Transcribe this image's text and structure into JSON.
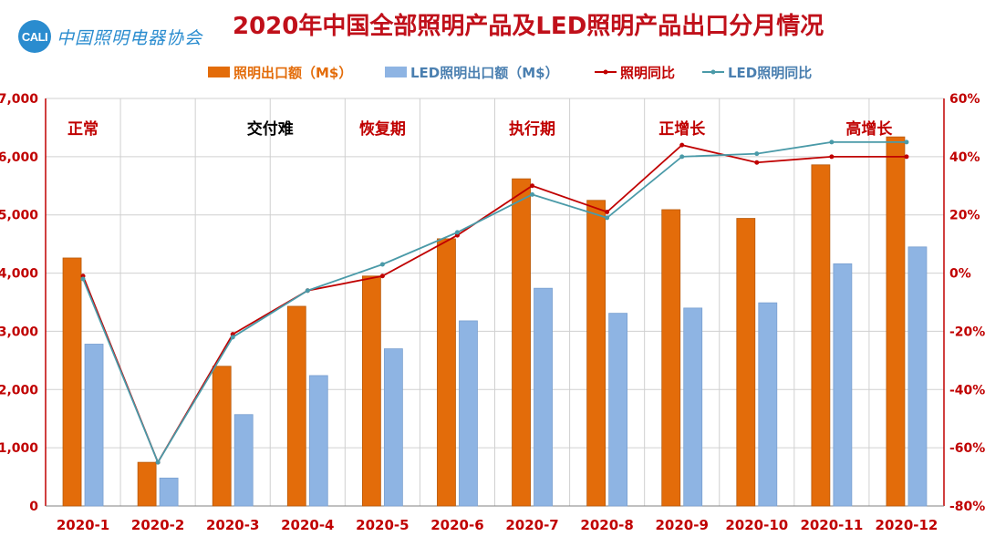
{
  "header": {
    "logo_mark": "CALI",
    "logo_text": "中国照明电器协会",
    "title": "2020年中国全部照明产品及LED照明产品出口分月情况"
  },
  "chart_data": {
    "type": "bar",
    "categories": [
      "2020-1",
      "2020-2",
      "2020-3",
      "2020-4",
      "2020-5",
      "2020-6",
      "2020-7",
      "2020-8",
      "2020-9",
      "2020-10",
      "2020-11",
      "2020-12"
    ],
    "series": [
      {
        "name": "照明出口额（M$）",
        "kind": "bar",
        "axis": "left",
        "color": "#e36c0a",
        "values": [
          4260,
          750,
          2400,
          3430,
          3950,
          4590,
          5620,
          5250,
          5090,
          4940,
          5860,
          6340
        ]
      },
      {
        "name": "LED照明出口额（M$）",
        "kind": "bar",
        "axis": "left",
        "color": "#8eb4e3",
        "values": [
          2780,
          480,
          1570,
          2240,
          2700,
          3180,
          3740,
          3310,
          3400,
          3490,
          4160,
          4450
        ]
      },
      {
        "name": "照明同比",
        "kind": "line",
        "axis": "right",
        "color": "#c00000",
        "values": [
          -1,
          -65,
          -21,
          -6,
          -1,
          13,
          30,
          21,
          44,
          38,
          40,
          40
        ]
      },
      {
        "name": "LED照明同比",
        "kind": "line",
        "axis": "right",
        "color": "#4a9aa8",
        "values": [
          -2,
          -65,
          -22,
          -6,
          3,
          14,
          27,
          19,
          40,
          41,
          45,
          45
        ]
      }
    ],
    "y_left": {
      "min": 0,
      "max": 7000,
      "step": 1000,
      "ticks": [
        "0",
        "1,000",
        "2,000",
        "3,000",
        "4,000",
        "5,000",
        "6,000",
        "7,000"
      ]
    },
    "y_right": {
      "min": -80,
      "max": 60,
      "step": 20,
      "ticks": [
        "-80%",
        "-60%",
        "-40%",
        "-20%",
        "0%",
        "20%",
        "40%",
        "60%"
      ]
    },
    "grid": true,
    "legend_position": "top",
    "phase_labels": [
      {
        "text": "正常",
        "color": "#c00000"
      },
      {
        "text": "交付难",
        "color": "#000000"
      },
      {
        "text": "恢复期",
        "color": "#c00000"
      },
      {
        "text": "执行期",
        "color": "#c00000"
      },
      {
        "text": "正增长",
        "color": "#c00000"
      },
      {
        "text": "高增长",
        "color": "#c00000"
      }
    ]
  }
}
